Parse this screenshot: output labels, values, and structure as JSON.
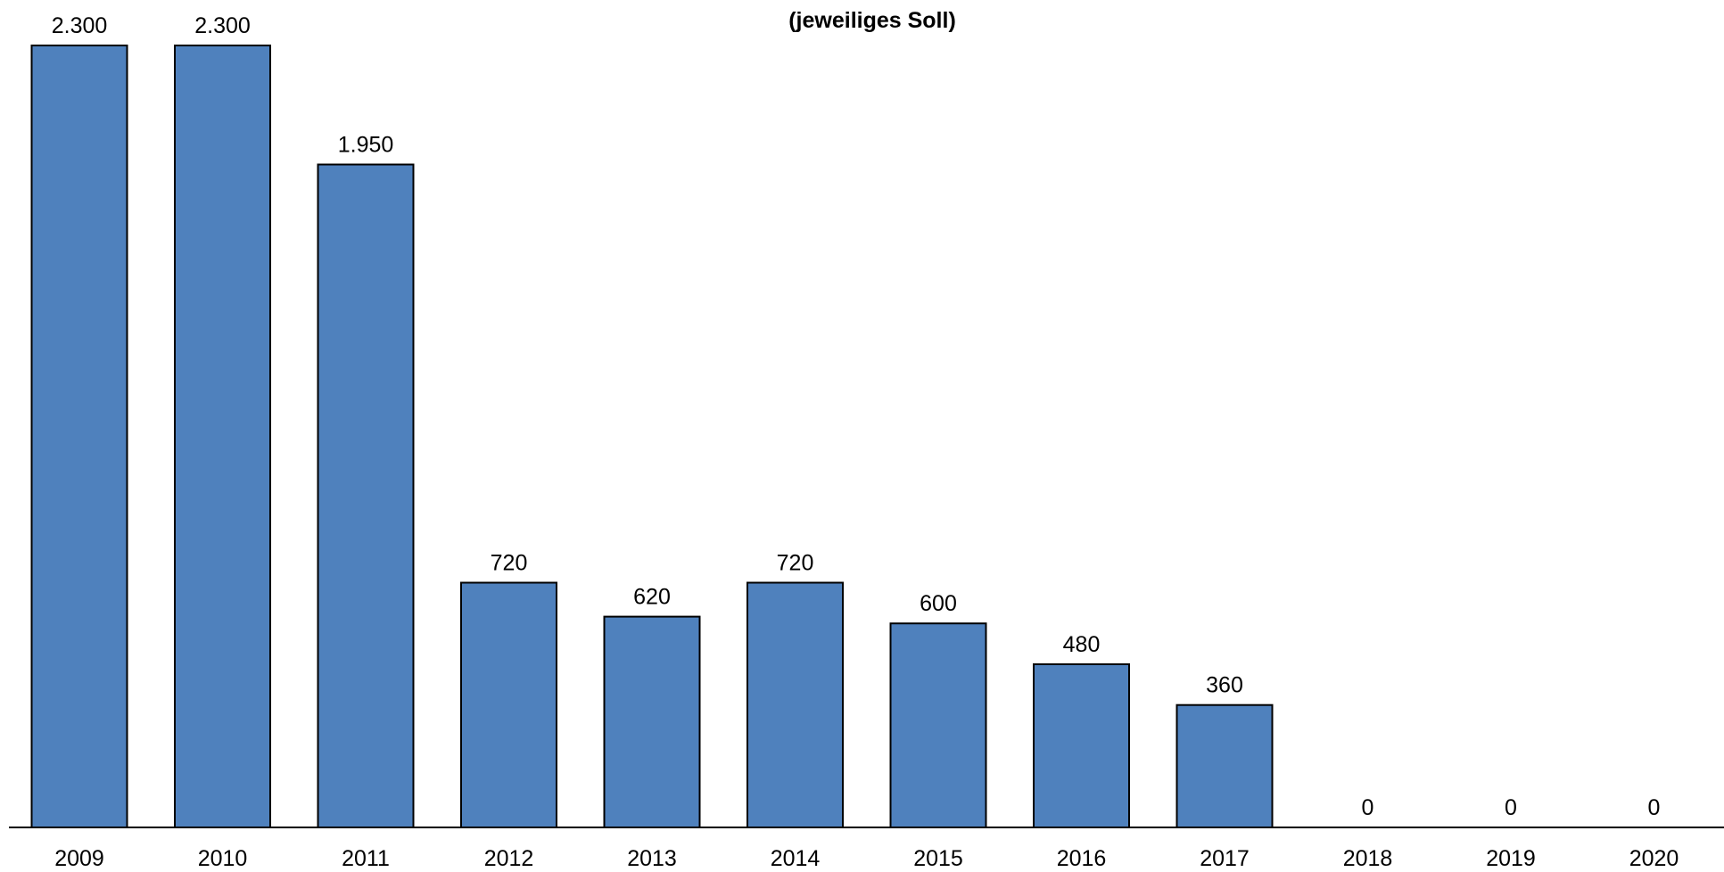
{
  "chart_data": {
    "type": "bar",
    "title": "(jeweiliges Soll)",
    "categories": [
      "2009",
      "2010",
      "2011",
      "2012",
      "2013",
      "2014",
      "2015",
      "2016",
      "2017",
      "2018",
      "2019",
      "2020"
    ],
    "values": [
      2300,
      2300,
      1950,
      720,
      620,
      720,
      600,
      480,
      360,
      0,
      0,
      0
    ],
    "value_labels": [
      "2.300",
      "2.300",
      "1.950",
      "720",
      "620",
      "720",
      "600",
      "480",
      "360",
      "0",
      "0",
      "0"
    ],
    "xlabel": "",
    "ylabel": "",
    "ylim": [
      0,
      2300
    ],
    "grid": false,
    "legend": "none",
    "bar_color": "#4f81bd",
    "bar_outline_color": "#000000"
  }
}
